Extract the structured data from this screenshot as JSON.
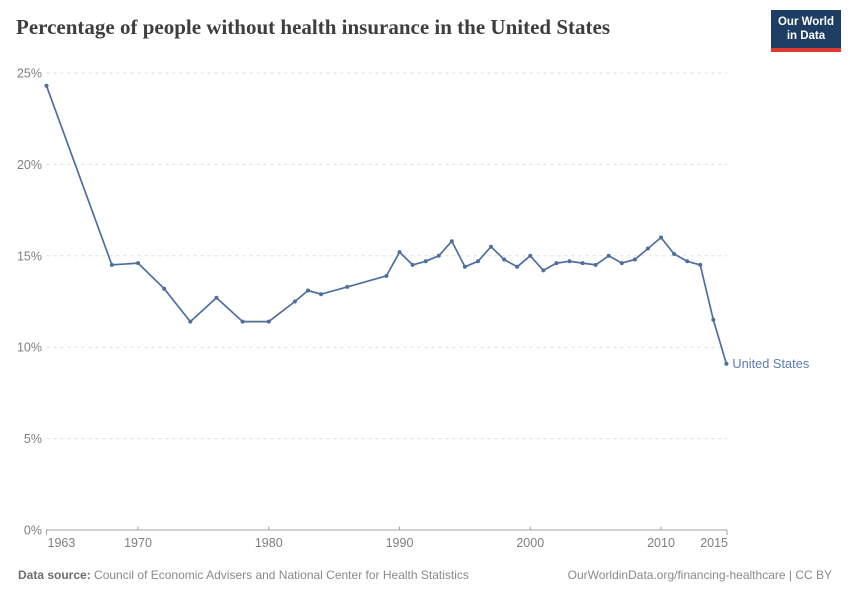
{
  "logo": {
    "line1": "Our World",
    "line2": "in Data"
  },
  "footer": {
    "source_label": "Data source:",
    "source_text": "Council of Economic Advisers and National Center for Health Statistics",
    "link_text": "OurWorldinData.org/financing-healthcare | CC BY"
  },
  "colors": {
    "line": "#4e6ea0",
    "series_label": "#5b7cb0",
    "grid": "#dedede",
    "axis": "#a3a3a3",
    "tick_text": "#7f7f7f",
    "logo_navy": "#1d3d63",
    "logo_red": "#e0392e",
    "title_text": "#3e3e3e"
  },
  "chart_data": {
    "type": "line",
    "title": "Percentage of people without health insurance in the United States",
    "xlabel": "",
    "ylabel": "",
    "xlim": [
      1963,
      2015
    ],
    "ylim": [
      0,
      25
    ],
    "grid": "horizontal-dashed",
    "legend_position": "end-of-line-label",
    "x_ticks": [
      {
        "label": "1963",
        "value": 1963,
        "align": "start"
      },
      {
        "label": "1970",
        "value": 1970,
        "align": "middle"
      },
      {
        "label": "1980",
        "value": 1980,
        "align": "middle"
      },
      {
        "label": "1990",
        "value": 1990,
        "align": "middle"
      },
      {
        "label": "2000",
        "value": 2000,
        "align": "middle"
      },
      {
        "label": "2010",
        "value": 2010,
        "align": "middle"
      },
      {
        "label": "2015",
        "value": 2015,
        "align": "end"
      }
    ],
    "y_ticks": [
      {
        "label": "0%",
        "value": 0
      },
      {
        "label": "5%",
        "value": 5
      },
      {
        "label": "10%",
        "value": 10
      },
      {
        "label": "15%",
        "value": 15
      },
      {
        "label": "20%",
        "value": 20
      },
      {
        "label": "25%",
        "value": 25
      }
    ],
    "series": [
      {
        "name": "United States",
        "points": [
          [
            1963,
            24.3
          ],
          [
            1968,
            14.5
          ],
          [
            1970,
            14.6
          ],
          [
            1972,
            13.2
          ],
          [
            1974,
            11.4
          ],
          [
            1976,
            12.7
          ],
          [
            1978,
            11.4
          ],
          [
            1980,
            11.4
          ],
          [
            1982,
            12.5
          ],
          [
            1983,
            13.1
          ],
          [
            1984,
            12.9
          ],
          [
            1986,
            13.3
          ],
          [
            1989,
            13.9
          ],
          [
            1990,
            15.2
          ],
          [
            1991,
            14.5
          ],
          [
            1992,
            14.7
          ],
          [
            1993,
            15.0
          ],
          [
            1994,
            15.8
          ],
          [
            1995,
            14.4
          ],
          [
            1996,
            14.7
          ],
          [
            1997,
            15.5
          ],
          [
            1998,
            14.8
          ],
          [
            1999,
            14.4
          ],
          [
            2000,
            15.0
          ],
          [
            2001,
            14.2
          ],
          [
            2002,
            14.6
          ],
          [
            2003,
            14.7
          ],
          [
            2004,
            14.6
          ],
          [
            2005,
            14.5
          ],
          [
            2006,
            15.0
          ],
          [
            2007,
            14.6
          ],
          [
            2008,
            14.8
          ],
          [
            2009,
            15.4
          ],
          [
            2010,
            16.0
          ],
          [
            2011,
            15.1
          ],
          [
            2012,
            14.7
          ],
          [
            2013,
            14.5
          ],
          [
            2014,
            11.5
          ],
          [
            2015,
            9.1
          ]
        ]
      }
    ]
  }
}
